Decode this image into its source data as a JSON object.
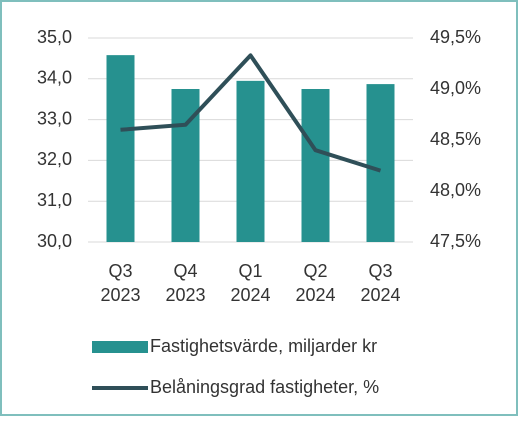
{
  "chart_data": {
    "type": "bar_line",
    "categories": [
      [
        "Q3",
        "2023"
      ],
      [
        "Q4",
        "2023"
      ],
      [
        "Q1",
        "2024"
      ],
      [
        "Q2",
        "2024"
      ],
      [
        "Q3",
        "2024"
      ]
    ],
    "series": [
      {
        "name": "Fastighetsvärde, miljarder kr",
        "type": "bar",
        "color": "#26918f",
        "values": [
          34.58,
          33.75,
          33.95,
          33.75,
          33.87
        ]
      },
      {
        "name": "Belåningsgrad fastigheter, %",
        "type": "line",
        "color": "#2f4f58",
        "axis": "y2",
        "values": [
          48.6,
          48.65,
          49.33,
          48.4,
          48.2
        ]
      }
    ],
    "ylim": [
      30,
      35
    ],
    "yticks": [
      {
        "value": 30,
        "label": "30,0"
      },
      {
        "value": 31,
        "label": "31,0"
      },
      {
        "value": 32,
        "label": "32,0"
      },
      {
        "value": 33,
        "label": "33,0"
      },
      {
        "value": 34,
        "label": "34,0"
      },
      {
        "value": 35,
        "label": "35,0"
      }
    ],
    "y2lim": [
      47.5,
      49.5
    ],
    "y2ticks": [
      {
        "value": 47.5,
        "label": "47,5%"
      },
      {
        "value": 48,
        "label": "48,0%"
      },
      {
        "value": 48.5,
        "label": "48,5%"
      },
      {
        "value": 49,
        "label": "49,0%"
      },
      {
        "value": 49.5,
        "label": "49,5%"
      }
    ],
    "grid": true,
    "legend": "bottom"
  }
}
